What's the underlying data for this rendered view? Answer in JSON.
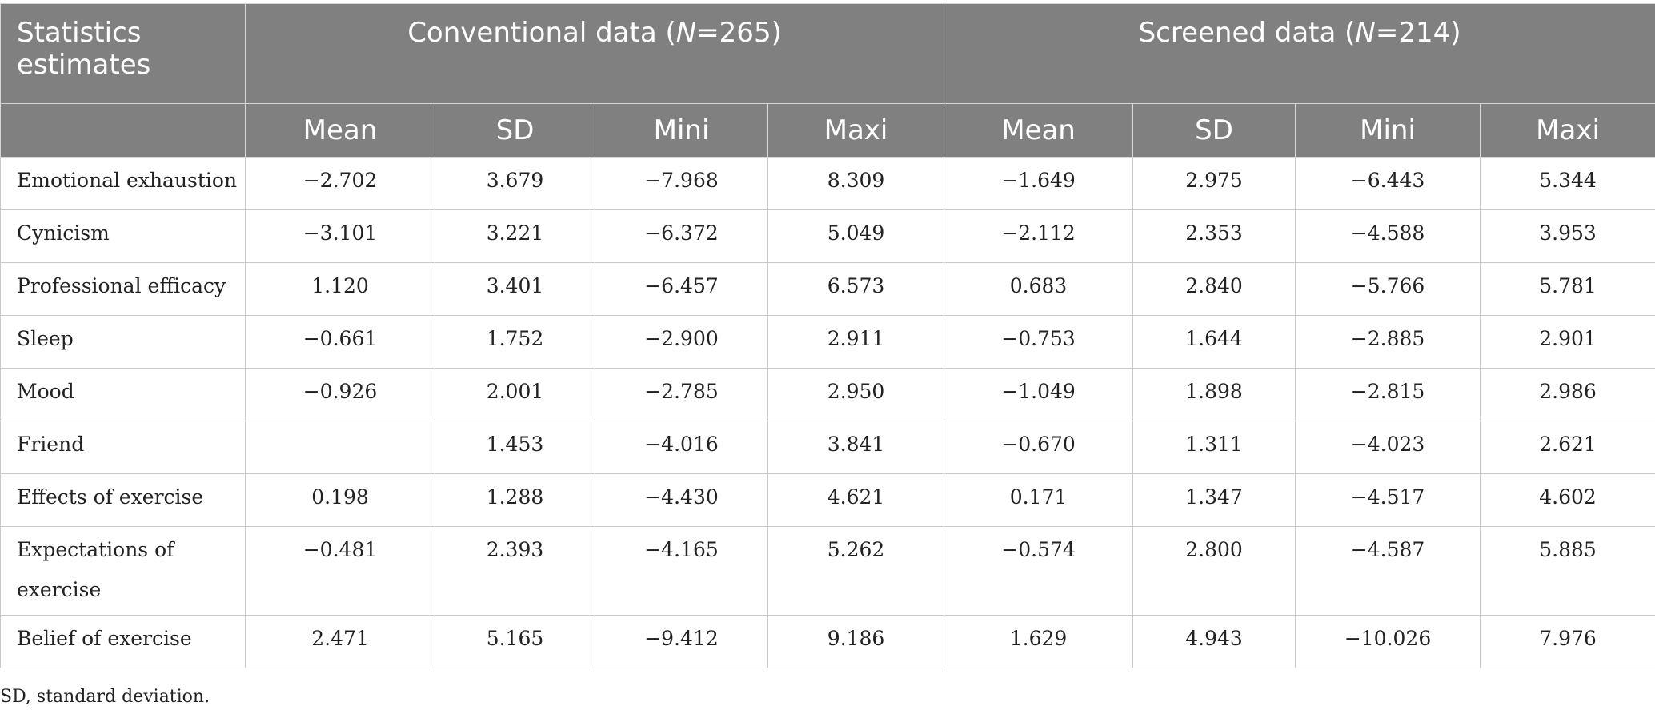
{
  "header": {
    "stat_label": "Statistics estimates",
    "group1": {
      "prefix": "Conventional data (",
      "n_symbol": "N",
      "suffix": "=265)"
    },
    "group2": {
      "prefix": "Screened data (",
      "n_symbol": "N",
      "suffix": "=214)"
    },
    "subcols": [
      "Mean",
      "SD",
      "Mini",
      "Maxi",
      "Mean",
      "SD",
      "Mini",
      "Maxi"
    ]
  },
  "rows": [
    {
      "label": "Emotional exhaustion",
      "values": [
        "−2.702",
        "3.679",
        "−7.968",
        "8.309",
        "−1.649",
        "2.975",
        "−6.443",
        "5.344"
      ]
    },
    {
      "label": "Cynicism",
      "values": [
        "−3.101",
        "3.221",
        "−6.372",
        "5.049",
        "−2.112",
        "2.353",
        "−4.588",
        "3.953"
      ]
    },
    {
      "label": "Professional efficacy",
      "values": [
        "1.120",
        "3.401",
        "−6.457",
        "6.573",
        "0.683",
        "2.840",
        "−5.766",
        "5.781"
      ]
    },
    {
      "label": "Sleep",
      "values": [
        "−0.661",
        "1.752",
        "−2.900",
        "2.911",
        "−0.753",
        "1.644",
        "−2.885",
        "2.901"
      ]
    },
    {
      "label": "Mood",
      "values": [
        "−0.926",
        "2.001",
        "−2.785",
        "2.950",
        "−1.049",
        "1.898",
        "−2.815",
        "2.986"
      ]
    },
    {
      "label": "Friend",
      "values": [
        "",
        "1.453",
        "−4.016",
        "3.841",
        "−0.670",
        "1.311",
        "−4.023",
        "2.621"
      ]
    },
    {
      "label": "Effects of exercise",
      "values": [
        "0.198",
        "1.288",
        "−4.430",
        "4.621",
        "0.171",
        "1.347",
        "−4.517",
        "4.602"
      ]
    },
    {
      "label": "Expectations of exercise",
      "values": [
        "−0.481",
        "2.393",
        "−4.165",
        "5.262",
        "−0.574",
        "2.800",
        "−4.587",
        "5.885"
      ],
      "tall": true
    },
    {
      "label": "Belief of exercise",
      "values": [
        "2.471",
        "5.165",
        "−9.412",
        "9.186",
        "1.629",
        "4.943",
        "−10.026",
        "7.976"
      ]
    }
  ],
  "footnote": "SD, standard deviation."
}
